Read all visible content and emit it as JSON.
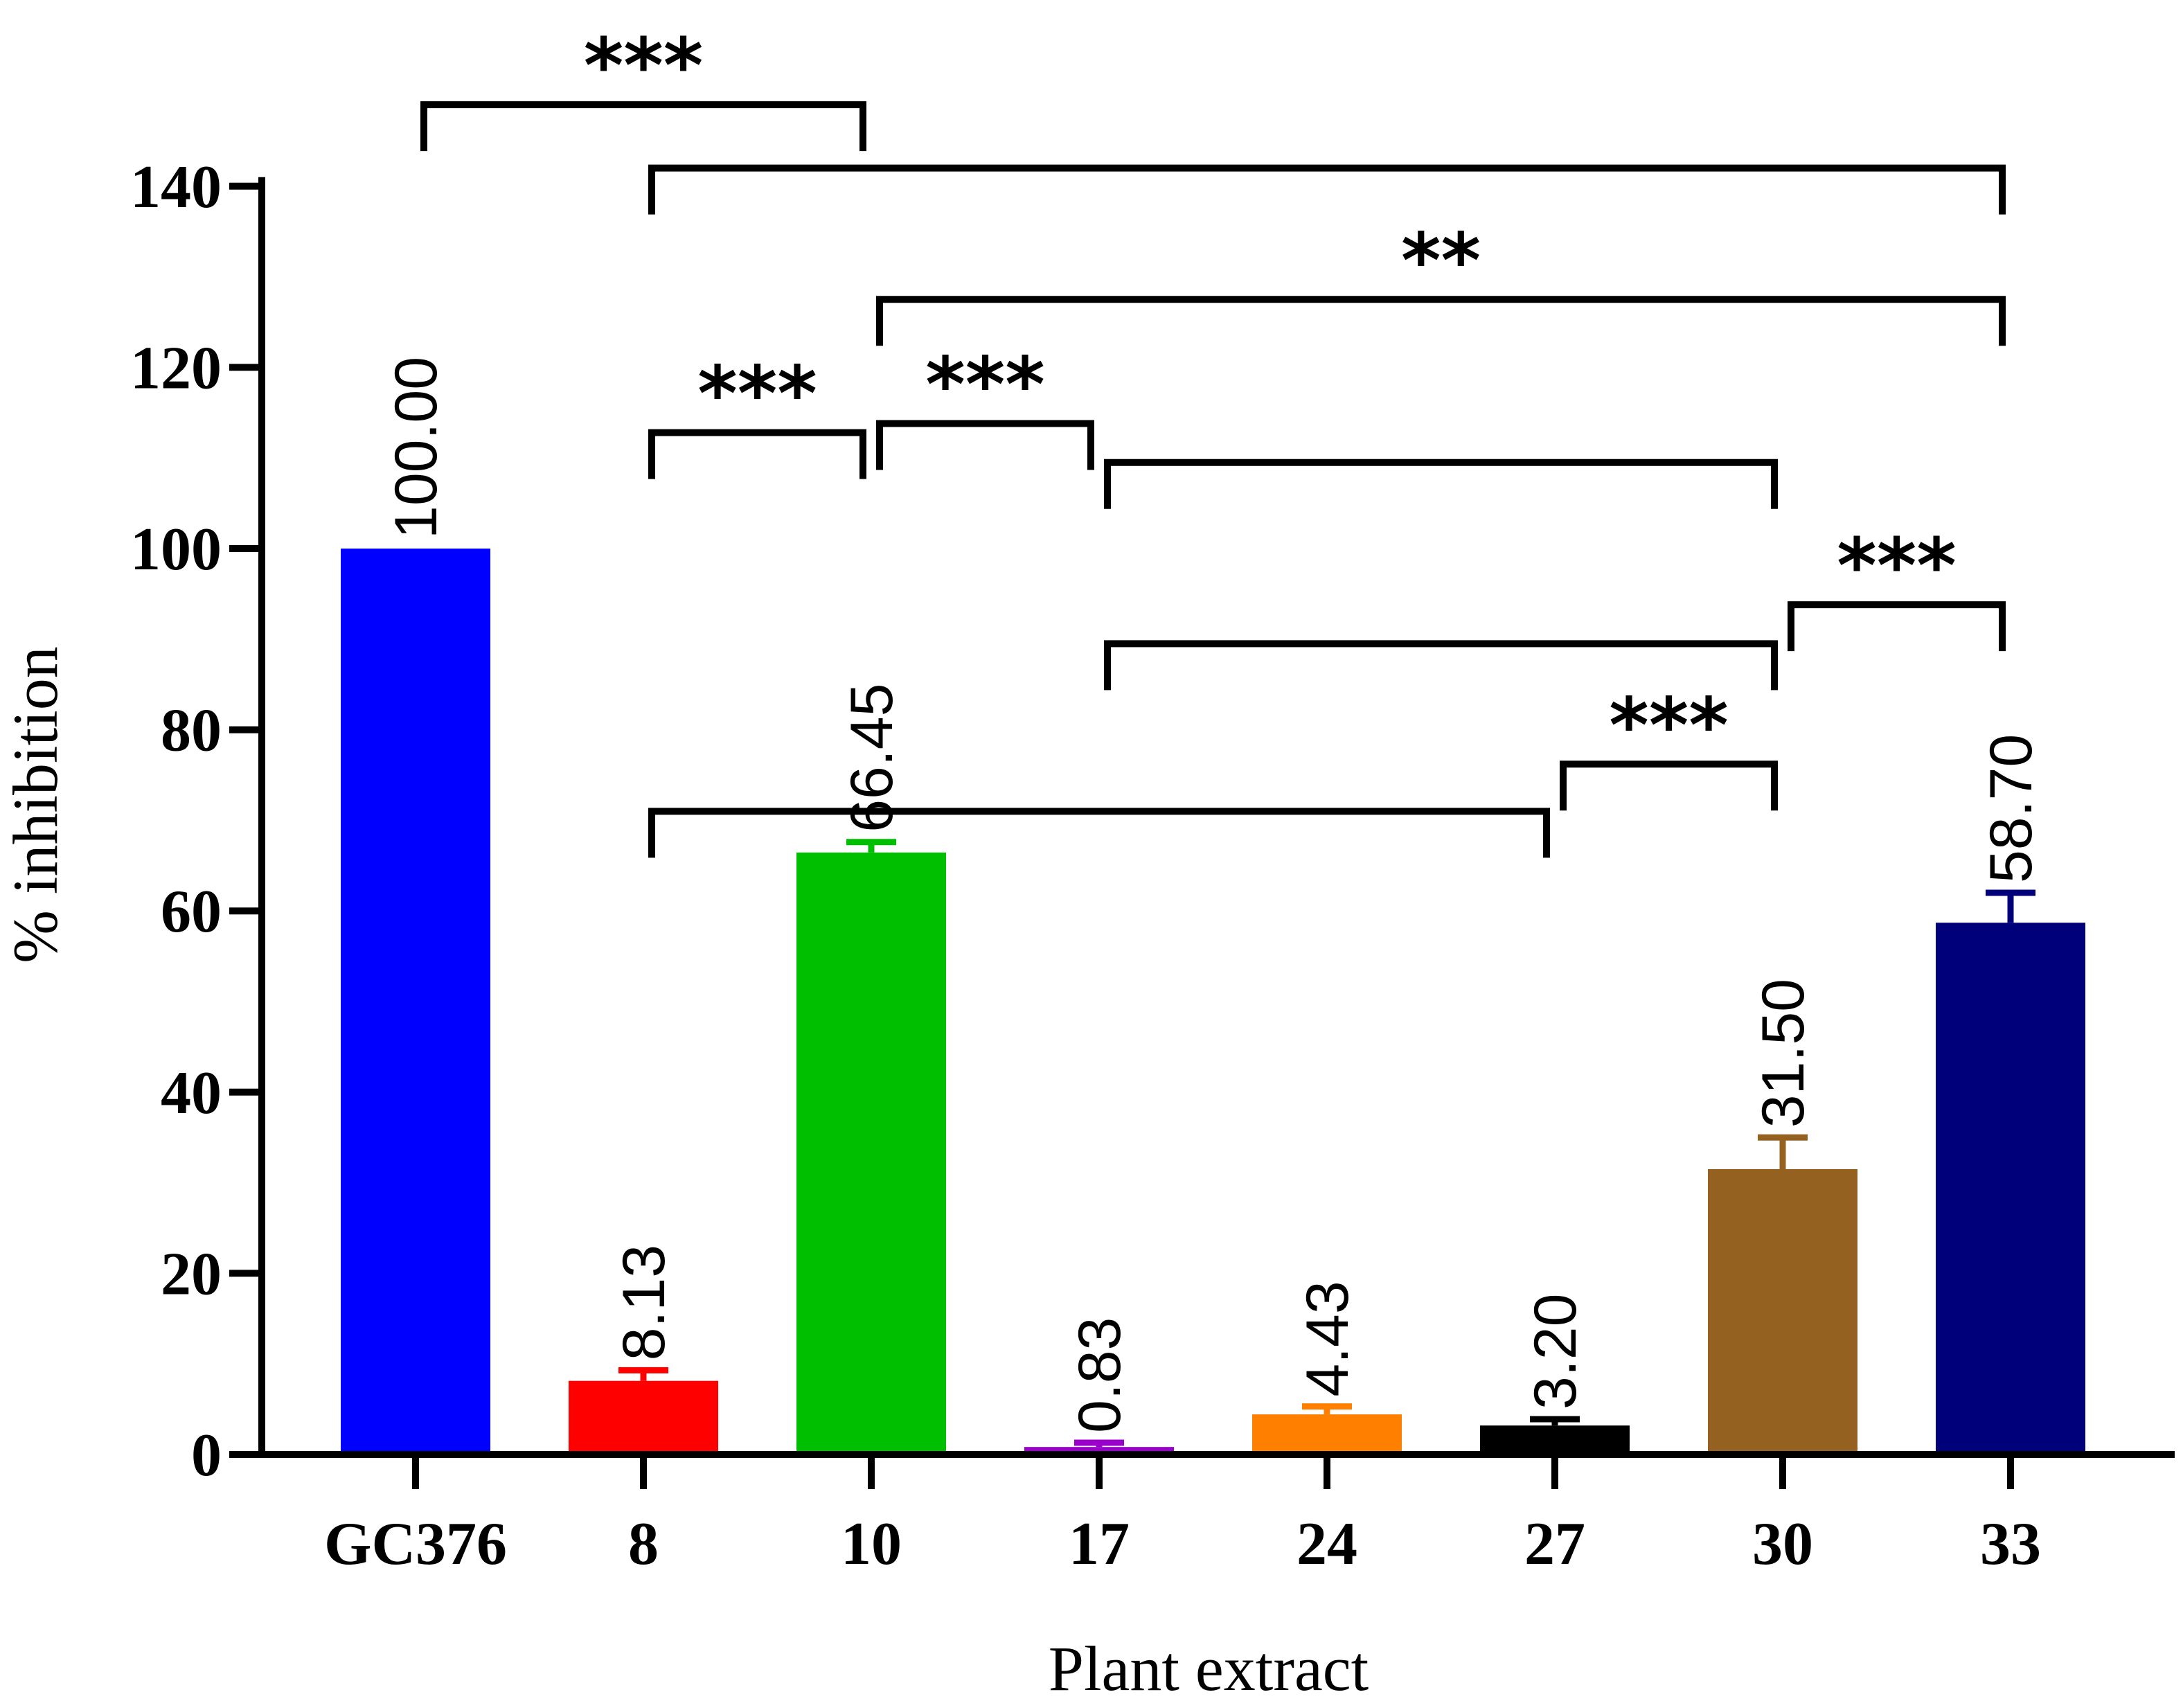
{
  "chart_data": {
    "type": "bar",
    "title": "",
    "xlabel": "Plant extract",
    "ylabel": "% inhibition",
    "ylim": [
      0,
      140
    ],
    "yticks": [
      0,
      20,
      40,
      60,
      80,
      100,
      120,
      140
    ],
    "categories": [
      "GC376",
      "8",
      "10",
      "17",
      "24",
      "27",
      "30",
      "33"
    ],
    "values": [
      100.0,
      8.13,
      66.45,
      0.83,
      4.43,
      3.2,
      31.5,
      58.7
    ],
    "value_labels": [
      "100.00",
      "8.13",
      "66.45",
      "0.83",
      "4.43",
      "3.20",
      "31.50",
      "58.70"
    ],
    "error_upper": [
      null,
      9.3,
      67.6,
      1.3,
      5.3,
      3.9,
      35.0,
      62.0
    ],
    "colors": [
      "#0000ff",
      "#ff0000",
      "#00bf00",
      "#9900cc",
      "#ff8000",
      "#000000",
      "#956121",
      "#00007a"
    ],
    "significance": [
      {
        "from": "GC376",
        "to": "10",
        "y": 149.0,
        "label": "***"
      },
      {
        "from": "8",
        "to": "33",
        "y": 142.0,
        "label": ""
      },
      {
        "from": "10",
        "to": "33",
        "y": 127.5,
        "label": "**"
      },
      {
        "from": "8",
        "to": "10",
        "y": 112.8,
        "label": "***"
      },
      {
        "from": "10",
        "to": "17",
        "y": 113.8,
        "label": "***"
      },
      {
        "from": "17",
        "to": "30",
        "y": 109.5,
        "label": ""
      },
      {
        "from": "30",
        "to": "33",
        "y": 93.8,
        "label": "***"
      },
      {
        "from": "17",
        "to": "30",
        "y": 89.5,
        "label": ""
      },
      {
        "from": "27",
        "to": "30",
        "y": 76.2,
        "label": "***"
      },
      {
        "from": "8",
        "to": "27",
        "y": 71.0,
        "label": ""
      }
    ]
  }
}
